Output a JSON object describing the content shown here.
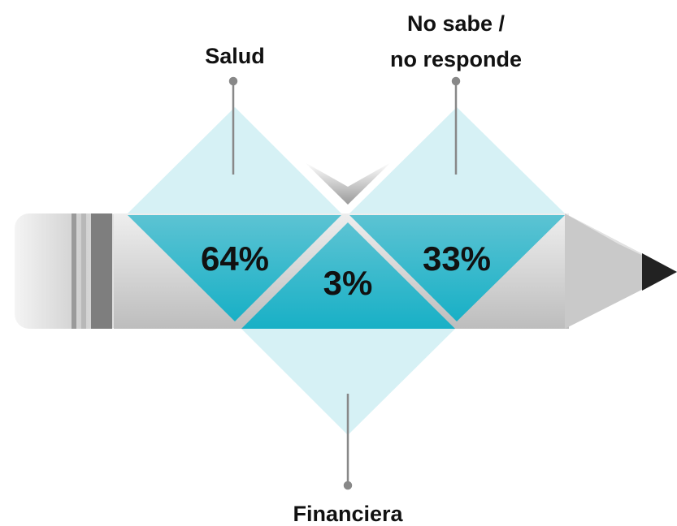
{
  "items": [
    {
      "label": [
        "Salud"
      ],
      "value": "64%"
    },
    {
      "label": [
        "Financiera"
      ],
      "value": "3%"
    },
    {
      "label": [
        "No sabe /",
        "no responde"
      ],
      "value": "33%"
    }
  ]
}
